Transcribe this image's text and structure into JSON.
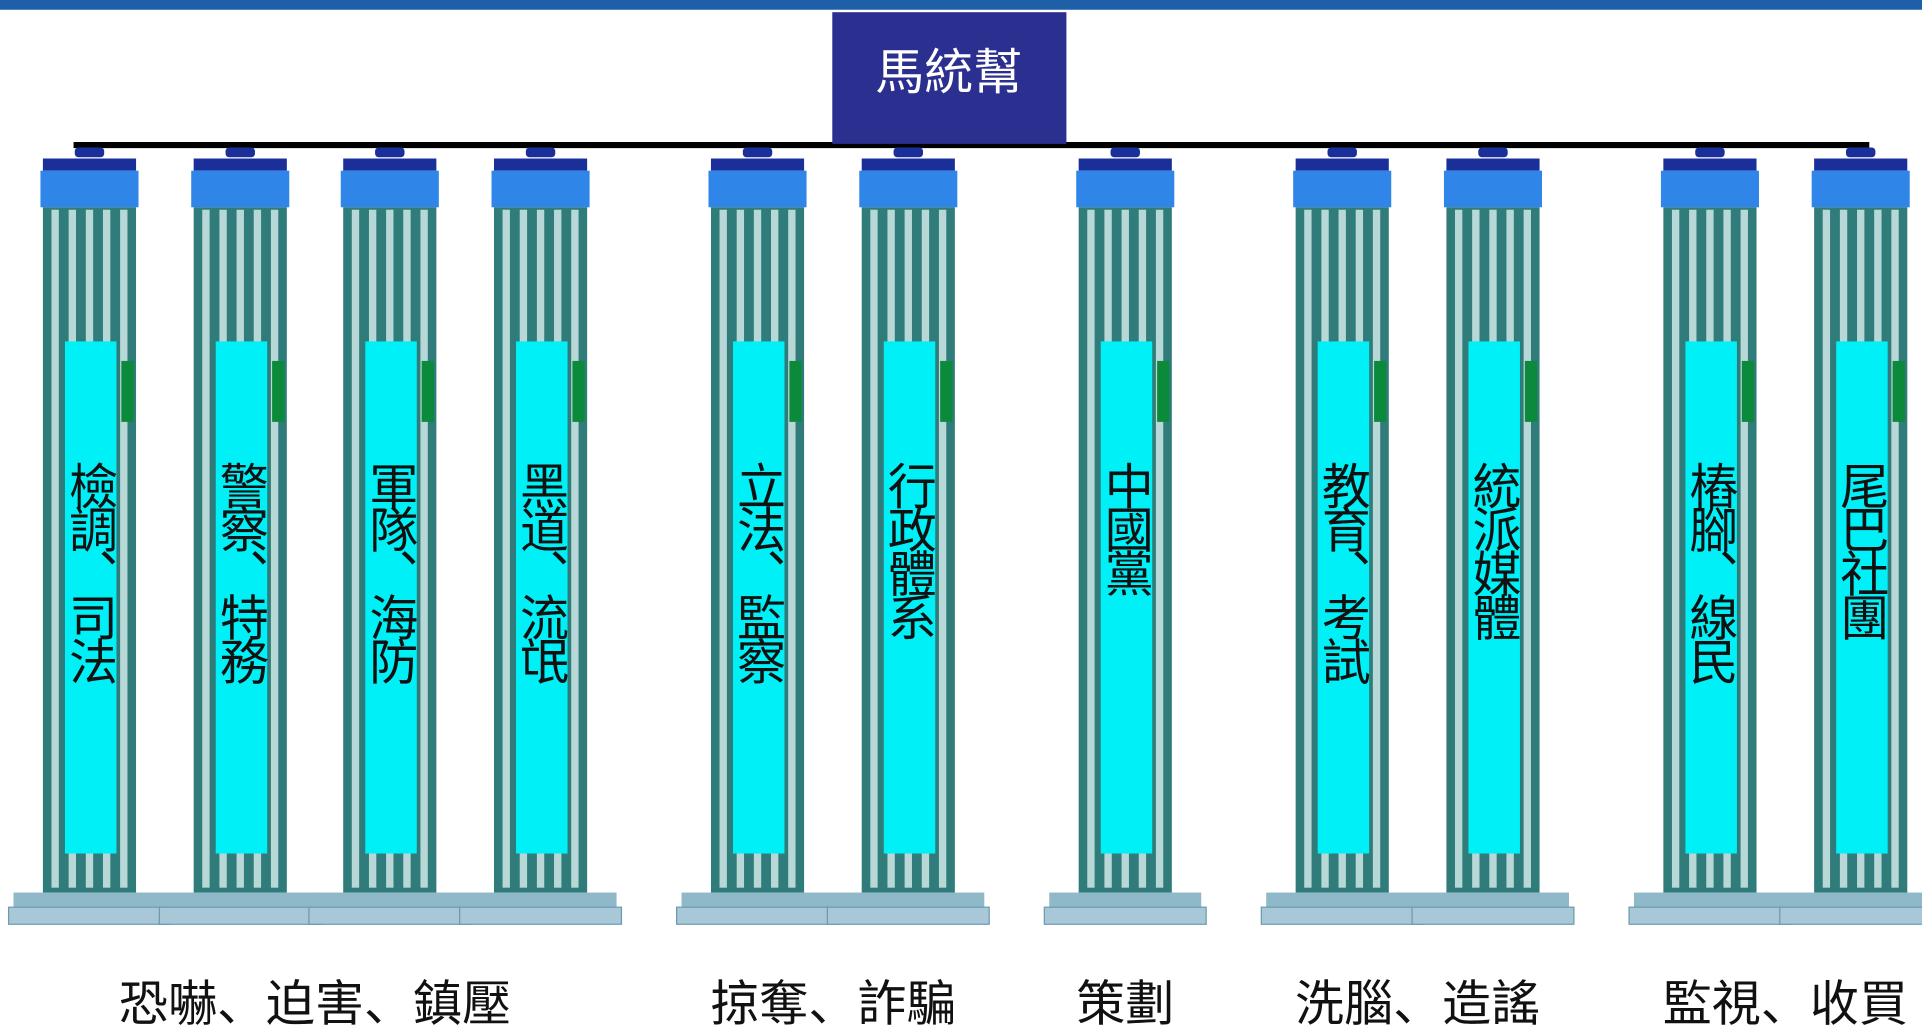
{
  "header": {
    "title": "馬統幫"
  },
  "groups": [
    {
      "caption": "恐嚇、迫害、鎮壓",
      "pillars": [
        "檢調、司法",
        "警察、特務",
        "軍隊、海防",
        "黑道、流氓"
      ]
    },
    {
      "caption": "掠奪、詐騙",
      "pillars": [
        "立法、監察",
        "行政體系"
      ]
    },
    {
      "caption": "策劃",
      "pillars": [
        "中國黨"
      ]
    },
    {
      "caption": "洗腦、造謠",
      "pillars": [
        "教育、考試",
        "統派媒體"
      ]
    },
    {
      "caption": "監視、收買",
      "pillars": [
        "樁腳、線民",
        "尾巴社團"
      ]
    }
  ]
}
